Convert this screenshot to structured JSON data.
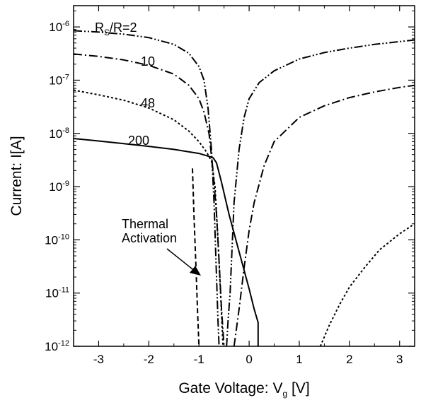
{
  "chart_data": {
    "type": "line",
    "title": "",
    "xlabel": "Gate Voltage: V",
    "xlabel_sub": "g",
    "xlabel_suffix": " [V]",
    "ylabel": "Current: I[A]",
    "xlim": [
      -3.5,
      3.3
    ],
    "ylim_log10": [
      -12,
      -5.6
    ],
    "y_scale": "log",
    "grid": false,
    "x_ticks": [
      "-3",
      "-2",
      "-1",
      "0",
      "1",
      "2",
      "3"
    ],
    "y_tick_base": "10",
    "y_tick_exponents": [
      "-6",
      "-7",
      "-8",
      "-9",
      "-10",
      "-11",
      "-12"
    ],
    "series": [
      {
        "name": "R",
        "name_sub": "S",
        "name_suffix": "/R=2",
        "dash": "dash-dot-dot",
        "points": [
          [
            -3.5,
            8.5e-07
          ],
          [
            -3.0,
            8e-07
          ],
          [
            -2.5,
            7.3e-07
          ],
          [
            -2.0,
            6.3e-07
          ],
          [
            -1.5,
            4.7e-07
          ],
          [
            -1.2,
            3.2e-07
          ],
          [
            -1.0,
            1.8e-07
          ],
          [
            -0.9,
            1e-07
          ],
          [
            -0.82,
            3e-08
          ],
          [
            -0.75,
            5e-09
          ],
          [
            -0.7,
            5e-10
          ],
          [
            -0.65,
            2e-11
          ],
          [
            -0.62,
            3e-12
          ],
          [
            -0.6,
            1e-12
          ],
          null,
          [
            -0.45,
            1e-12
          ],
          [
            -0.42,
            3e-12
          ],
          [
            -0.38,
            1e-11
          ],
          [
            -0.3,
            5e-10
          ],
          [
            -0.2,
            5e-09
          ],
          [
            -0.1,
            2e-08
          ],
          [
            0.0,
            4.5e-08
          ],
          [
            0.2,
            9e-08
          ],
          [
            0.5,
            1.5e-07
          ],
          [
            1.0,
            2.5e-07
          ],
          [
            1.5,
            3.3e-07
          ],
          [
            2.0,
            4e-07
          ],
          [
            2.5,
            4.7e-07
          ],
          [
            3.0,
            5.3e-07
          ],
          [
            3.3,
            5.7e-07
          ]
        ]
      },
      {
        "name": "10",
        "dash": "dash-dot",
        "points": [
          [
            -3.5,
            3.1e-07
          ],
          [
            -3.0,
            2.8e-07
          ],
          [
            -2.5,
            2.4e-07
          ],
          [
            -2.0,
            1.9e-07
          ],
          [
            -1.5,
            1.3e-07
          ],
          [
            -1.2,
            8e-08
          ],
          [
            -1.0,
            4.5e-08
          ],
          [
            -0.9,
            2.5e-08
          ],
          [
            -0.8,
            1e-08
          ],
          [
            -0.72,
            2e-09
          ],
          [
            -0.65,
            3e-10
          ],
          [
            -0.6,
            4e-11
          ],
          [
            -0.55,
            5e-12
          ],
          [
            -0.5,
            1e-12
          ],
          null,
          [
            -0.3,
            1e-12
          ],
          [
            -0.2,
            5e-12
          ],
          [
            -0.1,
            3e-11
          ],
          [
            0.0,
            1.5e-10
          ],
          [
            0.1,
            5e-10
          ],
          [
            0.3,
            2.5e-09
          ],
          [
            0.5,
            7e-09
          ],
          [
            1.0,
            2e-08
          ],
          [
            1.5,
            3.3e-08
          ],
          [
            2.0,
            4.7e-08
          ],
          [
            2.5,
            6e-08
          ],
          [
            3.0,
            7.3e-08
          ],
          [
            3.3,
            8e-08
          ]
        ]
      },
      {
        "name": "48",
        "dash": "dot",
        "points": [
          [
            -3.5,
            6.5e-08
          ],
          [
            -3.0,
            5.3e-08
          ],
          [
            -2.5,
            4.2e-08
          ],
          [
            -2.0,
            3e-08
          ],
          [
            -1.5,
            1.8e-08
          ],
          [
            -1.2,
            1.1e-08
          ],
          [
            -1.0,
            7e-09
          ],
          [
            -0.85,
            4.5e-09
          ],
          [
            -0.75,
            3e-09
          ],
          [
            -0.68,
            1e-09
          ],
          [
            -0.62,
            1e-10
          ],
          [
            -0.57,
            1e-11
          ],
          [
            -0.52,
            1e-12
          ],
          null,
          [
            1.42,
            1e-12
          ],
          [
            1.6,
            2.5e-12
          ],
          [
            1.8,
            6e-12
          ],
          [
            2.0,
            1.3e-11
          ],
          [
            2.3,
            3e-11
          ],
          [
            2.6,
            6.5e-11
          ],
          [
            3.0,
            1.3e-10
          ],
          [
            3.3,
            2e-10
          ]
        ]
      },
      {
        "name": "200",
        "dash": "solid",
        "points": [
          [
            -3.5,
            8e-09
          ],
          [
            -3.0,
            7.2e-09
          ],
          [
            -2.5,
            6.4e-09
          ],
          [
            -2.0,
            5.7e-09
          ],
          [
            -1.5,
            5e-09
          ],
          [
            -1.0,
            4.2e-09
          ],
          [
            -0.72,
            3.5e-09
          ],
          [
            -0.65,
            2.8e-09
          ],
          [
            -0.55,
            1.2e-09
          ],
          [
            -0.4,
            3e-10
          ],
          [
            -0.2,
            6e-11
          ],
          [
            0.0,
            1.2e-11
          ],
          [
            0.1,
            5e-12
          ],
          [
            0.18,
            2.8e-12
          ],
          [
            0.18,
            1e-12
          ]
        ]
      },
      {
        "name": "Thermal Activation",
        "dash": "dash",
        "points": [
          [
            -1.13,
            2.2e-09
          ],
          [
            -1.1,
            3e-10
          ],
          [
            -1.06,
            3e-11
          ],
          [
            -1.03,
            5e-12
          ],
          [
            -1.0,
            1e-12
          ]
        ]
      }
    ],
    "annotations": {
      "rs_prefix": "R",
      "rs_sub": "S",
      "rs_suffix": "/R=2",
      "label_10": "10",
      "label_48": "48",
      "label_200": "200",
      "thermal_line1": "Thermal",
      "thermal_line2": "Activation"
    }
  }
}
